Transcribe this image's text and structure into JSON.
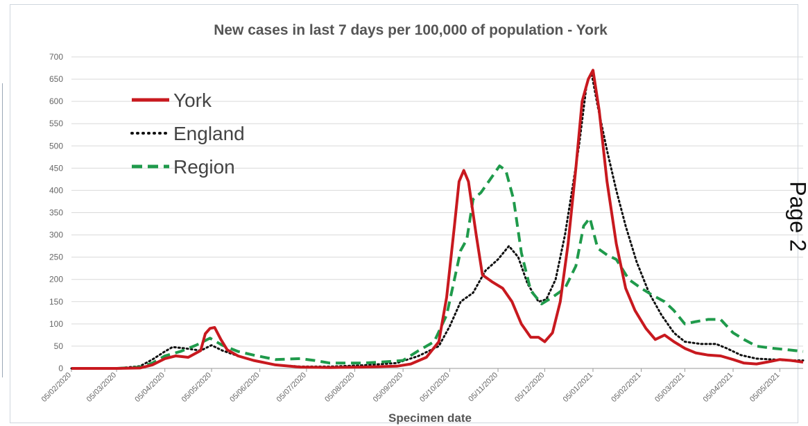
{
  "side_label": "Page 2",
  "chart_data": {
    "type": "line",
    "title": "New cases in last 7 days per 100,000 of population - York",
    "xlabel": "Specimen date",
    "ylabel": "",
    "ylim": [
      0,
      700
    ],
    "yticks": [
      0,
      50,
      100,
      150,
      200,
      250,
      300,
      350,
      400,
      450,
      500,
      550,
      600,
      650,
      700
    ],
    "xlim": [
      "2020-02-05",
      "2021-05-20"
    ],
    "xtick_labels": [
      "05/02/2020",
      "05/03/2020",
      "05/04/2020",
      "05/05/2020",
      "05/06/2020",
      "05/07/2020",
      "05/08/2020",
      "05/09/2020",
      "05/10/2020",
      "05/11/2020",
      "05/12/2020",
      "05/01/2021",
      "05/02/2021",
      "05/03/2021",
      "05/04/2021",
      "05/05/2021"
    ],
    "grid": true,
    "legend_placement": "top-left",
    "series": [
      {
        "name": "York",
        "color": "#c8191f",
        "style": "solid",
        "points": [
          [
            "2020-02-05",
            0
          ],
          [
            "2020-03-05",
            0
          ],
          [
            "2020-03-20",
            1
          ],
          [
            "2020-03-28",
            8
          ],
          [
            "2020-04-05",
            22
          ],
          [
            "2020-04-12",
            28
          ],
          [
            "2020-04-20",
            25
          ],
          [
            "2020-04-28",
            40
          ],
          [
            "2020-05-01",
            78
          ],
          [
            "2020-05-04",
            90
          ],
          [
            "2020-05-07",
            92
          ],
          [
            "2020-05-11",
            65
          ],
          [
            "2020-05-15",
            42
          ],
          [
            "2020-05-22",
            28
          ],
          [
            "2020-06-01",
            18
          ],
          [
            "2020-06-15",
            8
          ],
          [
            "2020-07-01",
            3
          ],
          [
            "2020-07-20",
            2
          ],
          [
            "2020-08-10",
            3
          ],
          [
            "2020-09-01",
            5
          ],
          [
            "2020-09-10",
            10
          ],
          [
            "2020-09-20",
            25
          ],
          [
            "2020-09-28",
            60
          ],
          [
            "2020-10-03",
            160
          ],
          [
            "2020-10-08",
            320
          ],
          [
            "2020-10-11",
            420
          ],
          [
            "2020-10-14",
            445
          ],
          [
            "2020-10-17",
            420
          ],
          [
            "2020-10-22",
            300
          ],
          [
            "2020-10-26",
            210
          ],
          [
            "2020-11-01",
            195
          ],
          [
            "2020-11-08",
            180
          ],
          [
            "2020-11-14",
            150
          ],
          [
            "2020-11-20",
            100
          ],
          [
            "2020-11-26",
            70
          ],
          [
            "2020-12-01",
            70
          ],
          [
            "2020-12-05",
            60
          ],
          [
            "2020-12-10",
            80
          ],
          [
            "2020-12-15",
            150
          ],
          [
            "2020-12-20",
            280
          ],
          [
            "2020-12-25",
            450
          ],
          [
            "2020-12-29",
            600
          ],
          [
            "2021-01-02",
            650
          ],
          [
            "2021-01-05",
            670
          ],
          [
            "2021-01-09",
            580
          ],
          [
            "2021-01-14",
            420
          ],
          [
            "2021-01-20",
            280
          ],
          [
            "2021-01-26",
            180
          ],
          [
            "2021-02-01",
            130
          ],
          [
            "2021-02-08",
            90
          ],
          [
            "2021-02-14",
            65
          ],
          [
            "2021-02-20",
            75
          ],
          [
            "2021-02-26",
            60
          ],
          [
            "2021-03-05",
            45
          ],
          [
            "2021-03-12",
            35
          ],
          [
            "2021-03-20",
            30
          ],
          [
            "2021-03-28",
            28
          ],
          [
            "2021-04-05",
            20
          ],
          [
            "2021-04-12",
            12
          ],
          [
            "2021-04-20",
            10
          ],
          [
            "2021-04-28",
            15
          ],
          [
            "2021-05-05",
            20
          ],
          [
            "2021-05-12",
            18
          ],
          [
            "2021-05-20",
            14
          ]
        ]
      },
      {
        "name": "England",
        "color": "#111111",
        "style": "dotted",
        "points": [
          [
            "2020-02-05",
            0
          ],
          [
            "2020-03-05",
            0
          ],
          [
            "2020-03-20",
            5
          ],
          [
            "2020-03-28",
            20
          ],
          [
            "2020-04-05",
            38
          ],
          [
            "2020-04-10",
            48
          ],
          [
            "2020-04-18",
            45
          ],
          [
            "2020-04-28",
            40
          ],
          [
            "2020-05-05",
            52
          ],
          [
            "2020-05-12",
            40
          ],
          [
            "2020-05-22",
            28
          ],
          [
            "2020-06-01",
            18
          ],
          [
            "2020-06-15",
            8
          ],
          [
            "2020-07-01",
            4
          ],
          [
            "2020-07-20",
            4
          ],
          [
            "2020-08-10",
            7
          ],
          [
            "2020-09-01",
            12
          ],
          [
            "2020-09-15",
            28
          ],
          [
            "2020-09-28",
            50
          ],
          [
            "2020-10-05",
            95
          ],
          [
            "2020-10-12",
            150
          ],
          [
            "2020-10-20",
            170
          ],
          [
            "2020-10-28",
            220
          ],
          [
            "2020-11-05",
            245
          ],
          [
            "2020-11-12",
            275
          ],
          [
            "2020-11-18",
            250
          ],
          [
            "2020-11-24",
            190
          ],
          [
            "2020-12-01",
            150
          ],
          [
            "2020-12-06",
            155
          ],
          [
            "2020-12-12",
            200
          ],
          [
            "2020-12-18",
            300
          ],
          [
            "2020-12-23",
            410
          ],
          [
            "2020-12-27",
            500
          ],
          [
            "2021-01-01",
            640
          ],
          [
            "2021-01-04",
            665
          ],
          [
            "2021-01-08",
            590
          ],
          [
            "2021-01-14",
            490
          ],
          [
            "2021-01-20",
            400
          ],
          [
            "2021-01-26",
            320
          ],
          [
            "2021-02-02",
            240
          ],
          [
            "2021-02-10",
            170
          ],
          [
            "2021-02-18",
            120
          ],
          [
            "2021-02-26",
            80
          ],
          [
            "2021-03-05",
            60
          ],
          [
            "2021-03-15",
            55
          ],
          [
            "2021-03-25",
            55
          ],
          [
            "2021-04-01",
            45
          ],
          [
            "2021-04-10",
            30
          ],
          [
            "2021-04-20",
            22
          ],
          [
            "2021-05-01",
            20
          ],
          [
            "2021-05-10",
            18
          ],
          [
            "2021-05-20",
            18
          ]
        ]
      },
      {
        "name": "Region",
        "color": "#1f9a4b",
        "style": "dashed",
        "points": [
          [
            "2020-02-05",
            0
          ],
          [
            "2020-03-05",
            0
          ],
          [
            "2020-03-20",
            3
          ],
          [
            "2020-03-28",
            12
          ],
          [
            "2020-04-05",
            28
          ],
          [
            "2020-04-15",
            38
          ],
          [
            "2020-04-25",
            52
          ],
          [
            "2020-05-04",
            68
          ],
          [
            "2020-05-12",
            52
          ],
          [
            "2020-05-22",
            38
          ],
          [
            "2020-06-01",
            30
          ],
          [
            "2020-06-15",
            20
          ],
          [
            "2020-07-01",
            22
          ],
          [
            "2020-07-10",
            18
          ],
          [
            "2020-07-20",
            12
          ],
          [
            "2020-08-10",
            12
          ],
          [
            "2020-08-25",
            15
          ],
          [
            "2020-09-05",
            18
          ],
          [
            "2020-09-15",
            40
          ],
          [
            "2020-09-25",
            60
          ],
          [
            "2020-10-03",
            120
          ],
          [
            "2020-10-08",
            200
          ],
          [
            "2020-10-12",
            265
          ],
          [
            "2020-10-16",
            290
          ],
          [
            "2020-10-20",
            380
          ],
          [
            "2020-10-25",
            395
          ],
          [
            "2020-11-01",
            430
          ],
          [
            "2020-11-06",
            455
          ],
          [
            "2020-11-10",
            445
          ],
          [
            "2020-11-15",
            380
          ],
          [
            "2020-11-20",
            260
          ],
          [
            "2020-11-26",
            175
          ],
          [
            "2020-12-03",
            145
          ],
          [
            "2020-12-10",
            160
          ],
          [
            "2020-12-18",
            180
          ],
          [
            "2020-12-25",
            230
          ],
          [
            "2020-12-30",
            320
          ],
          [
            "2021-01-03",
            338
          ],
          [
            "2021-01-08",
            270
          ],
          [
            "2021-01-14",
            255
          ],
          [
            "2021-01-20",
            245
          ],
          [
            "2021-01-28",
            200
          ],
          [
            "2021-02-05",
            180
          ],
          [
            "2021-02-12",
            165
          ],
          [
            "2021-02-20",
            150
          ],
          [
            "2021-02-26",
            130
          ],
          [
            "2021-03-05",
            100
          ],
          [
            "2021-03-12",
            105
          ],
          [
            "2021-03-20",
            110
          ],
          [
            "2021-03-28",
            110
          ],
          [
            "2021-04-05",
            80
          ],
          [
            "2021-04-12",
            65
          ],
          [
            "2021-04-20",
            50
          ],
          [
            "2021-05-01",
            45
          ],
          [
            "2021-05-10",
            42
          ],
          [
            "2021-05-20",
            38
          ]
        ]
      }
    ]
  }
}
